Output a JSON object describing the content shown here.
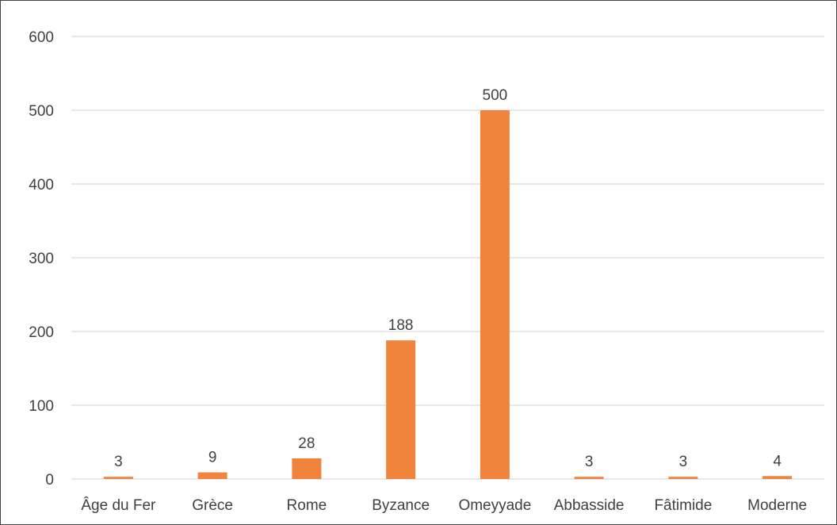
{
  "chart_data": {
    "type": "bar",
    "categories": [
      "Âge du Fer",
      "Grèce",
      "Rome",
      "Byzance",
      "Omeyyade",
      "Abbasside",
      "Fâtimide",
      "Moderne"
    ],
    "values": [
      3,
      9,
      28,
      188,
      500,
      3,
      3,
      4
    ],
    "data_labels": [
      "3",
      "9",
      "28",
      "188",
      "500",
      "3",
      "3",
      "4"
    ],
    "title": "",
    "xlabel": "",
    "ylabel": "",
    "ylim": [
      0,
      600
    ],
    "yticks": [
      0,
      100,
      200,
      300,
      400,
      500,
      600
    ],
    "ytick_labels": [
      "0",
      "100",
      "200",
      "300",
      "400",
      "500",
      "600"
    ],
    "grid": true,
    "legend": "none",
    "bar_color": "#f0843c"
  }
}
